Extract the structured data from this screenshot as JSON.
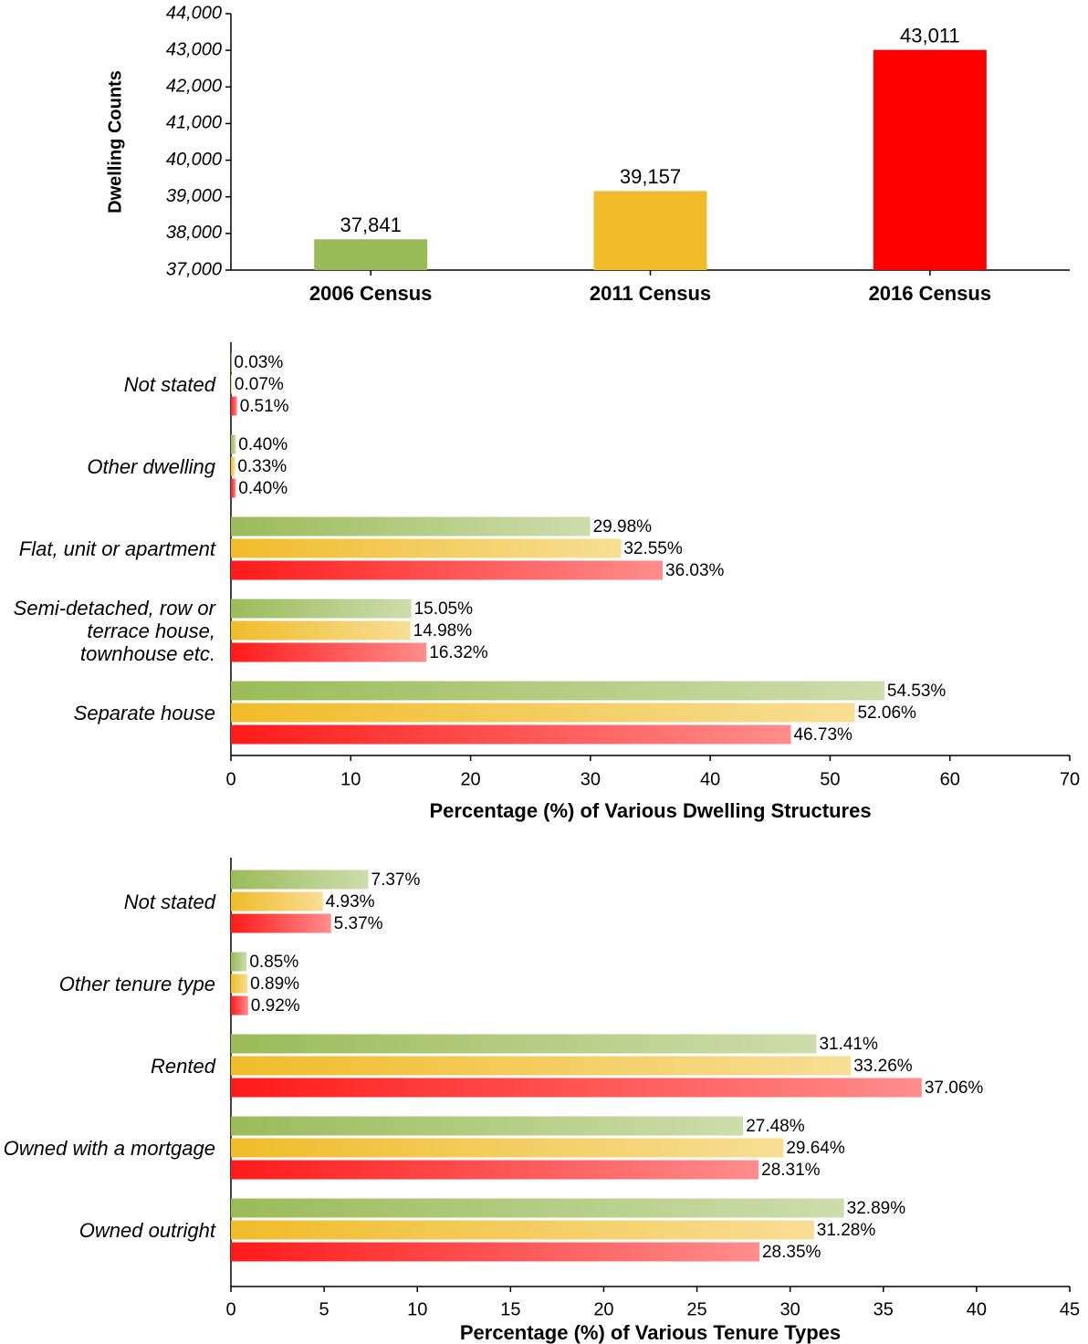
{
  "chart_data": [
    {
      "type": "bar",
      "ylabel": "Dwelling Counts",
      "categories": [
        "2006 Census",
        "2011 Census",
        "2016 Census"
      ],
      "values": [
        37841,
        39157,
        43011
      ],
      "value_labels": [
        "37,841",
        "39,157",
        "43,011"
      ],
      "colors": [
        "#9bbb59",
        "#f0bc2a",
        "#ff0000"
      ],
      "ylim": [
        37000,
        44000
      ],
      "yticks": [
        {
          "value": 37000,
          "label": "37,000"
        },
        {
          "value": 38000,
          "label": "38,000"
        },
        {
          "value": 39000,
          "label": "39,000"
        },
        {
          "value": 40000,
          "label": "40,000"
        },
        {
          "value": 41000,
          "label": "41,000"
        },
        {
          "value": 42000,
          "label": "42,000"
        },
        {
          "value": 43000,
          "label": "43,000"
        },
        {
          "value": 44000,
          "label": "44,000"
        }
      ]
    },
    {
      "type": "hbar",
      "xlabel": "Percentage (%) of Various Dwelling Structures",
      "categories": [
        "Not stated",
        "Other dwelling",
        "Flat, unit or apartment",
        "Semi-detached, row or terrace house, townhouse etc.",
        "Separate house"
      ],
      "series": [
        {
          "color": "#9bbb59",
          "values": [
            0.03,
            0.4,
            29.98,
            15.05,
            54.53
          ],
          "value_labels": [
            "0.03%",
            "0.40%",
            "29.98%",
            "15.05%",
            "54.53%"
          ]
        },
        {
          "color": "#f0bc2a",
          "values": [
            0.07,
            0.33,
            32.55,
            14.98,
            52.06
          ],
          "value_labels": [
            "0.07%",
            "0.33%",
            "32.55%",
            "14.98%",
            "52.06%"
          ]
        },
        {
          "color": "#ff1a1a",
          "values": [
            0.51,
            0.4,
            36.03,
            16.32,
            46.73
          ],
          "value_labels": [
            "0.51%",
            "0.40%",
            "36.03%",
            "16.32%",
            "46.73%"
          ]
        }
      ],
      "xlim": [
        0,
        70
      ],
      "xticks": [
        0,
        10,
        20,
        30,
        40,
        50,
        60,
        70
      ]
    },
    {
      "type": "hbar",
      "xlabel": "Percentage (%) of Various Tenure Types",
      "categories": [
        "Not stated",
        "Other tenure type",
        "Rented",
        "Owned with a mortgage",
        "Owned outright"
      ],
      "series": [
        {
          "color": "#9bbb59",
          "values": [
            7.37,
            0.85,
            31.41,
            27.48,
            32.89
          ],
          "value_labels": [
            "7.37%",
            "0.85%",
            "31.41%",
            "27.48%",
            "32.89%"
          ]
        },
        {
          "color": "#f0bc2a",
          "values": [
            4.93,
            0.89,
            33.26,
            29.64,
            31.28
          ],
          "value_labels": [
            "4.93%",
            "0.89%",
            "33.26%",
            "29.64%",
            "31.28%"
          ]
        },
        {
          "color": "#ff1a1a",
          "values": [
            5.37,
            0.92,
            37.06,
            28.31,
            28.35
          ],
          "value_labels": [
            "5.37%",
            "0.92%",
            "37.06%",
            "28.31%",
            "28.35%"
          ]
        }
      ],
      "xlim": [
        0,
        45
      ],
      "xticks": [
        0,
        5,
        10,
        15,
        20,
        25,
        30,
        35,
        40,
        45
      ]
    }
  ]
}
